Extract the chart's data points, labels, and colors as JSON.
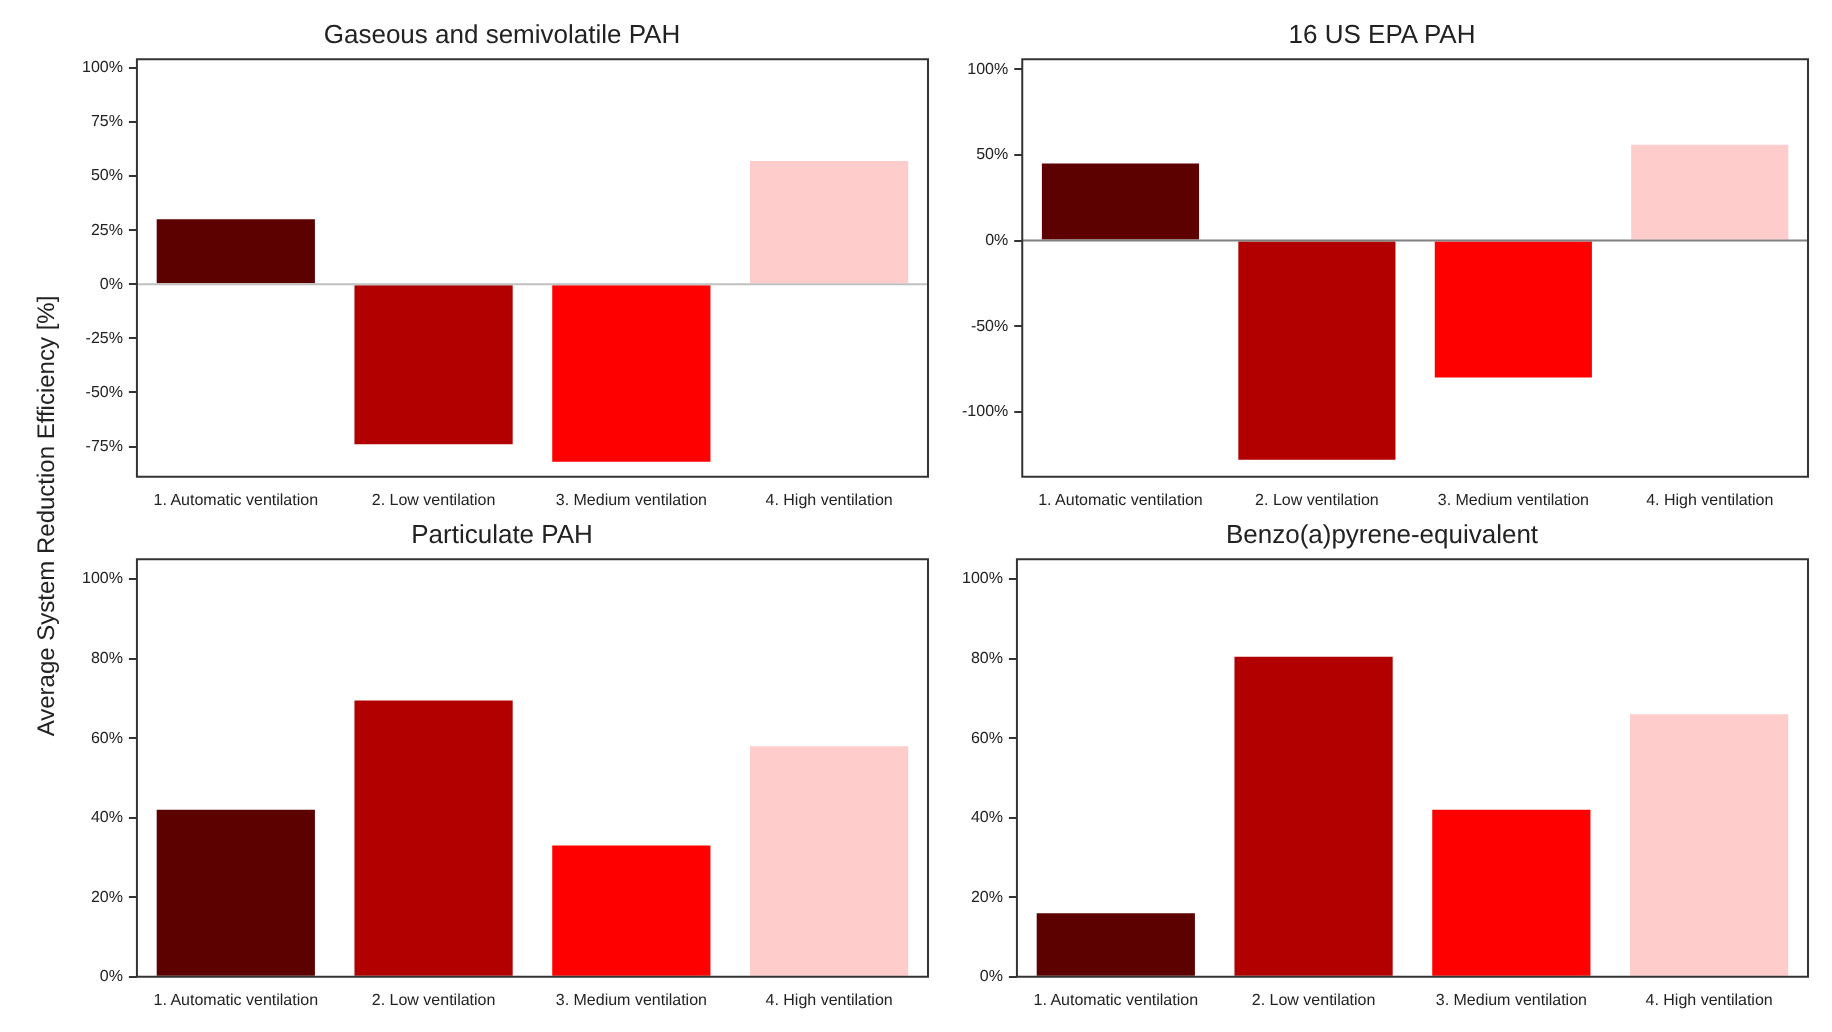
{
  "chart_data": [
    {
      "type": "bar",
      "title": "Gaseous and semivolatile PAH",
      "ylabel": "Average System Reduction Efficiency [%]",
      "categories": [
        "1. Automatic ventilation",
        "2. Low ventilation",
        "3. Medium ventilation",
        "4. High ventilation"
      ],
      "values": [
        30,
        -74,
        -82,
        57
      ],
      "colors": [
        "#5c0000",
        "#b20000",
        "#ff0000",
        "#ffcccc"
      ],
      "ylim": [
        -89,
        104
      ],
      "yticks": [
        {
          "value": -75,
          "label": "-75%"
        },
        {
          "value": -50,
          "label": "-50%"
        },
        {
          "value": -25,
          "label": "-25%"
        },
        {
          "value": 0,
          "label": "0%"
        },
        {
          "value": 25,
          "label": "25%"
        },
        {
          "value": 50,
          "label": "50%"
        },
        {
          "value": 75,
          "label": "75%"
        },
        {
          "value": 100,
          "label": "100%"
        }
      ],
      "ref_lines": [
        {
          "axis": "y",
          "value": 0,
          "color": "#c0c0c0"
        }
      ],
      "grid": false,
      "legend": false
    },
    {
      "type": "bar",
      "title": "16 US EPA PAH",
      "categories": [
        "1. Automatic ventilation",
        "2. Low ventilation",
        "3. Medium ventilation",
        "4. High ventilation"
      ],
      "values": [
        45,
        -128,
        -80,
        56
      ],
      "colors": [
        "#5c0000",
        "#b20000",
        "#ff0000",
        "#ffcccc"
      ],
      "ylim": [
        -138,
        106
      ],
      "yticks": [
        {
          "value": -100,
          "label": "-100%"
        },
        {
          "value": -50,
          "label": "-50%"
        },
        {
          "value": 0,
          "label": "0%"
        },
        {
          "value": 50,
          "label": "50%"
        },
        {
          "value": 100,
          "label": "100%"
        }
      ],
      "ref_lines": [
        {
          "axis": "y",
          "value": 0,
          "color": "#808080"
        }
      ],
      "grid": false,
      "legend": false
    },
    {
      "type": "bar",
      "title": "Particulate PAH",
      "categories": [
        "1. Automatic ventilation",
        "2. Low ventilation",
        "3. Medium ventilation",
        "4. High ventilation"
      ],
      "values": [
        42,
        69.5,
        33,
        58
      ],
      "colors": [
        "#5c0000",
        "#b20000",
        "#ff0000",
        "#ffcccc"
      ],
      "ylim": [
        0,
        105
      ],
      "yticks": [
        {
          "value": 0,
          "label": "0%"
        },
        {
          "value": 20,
          "label": "20%"
        },
        {
          "value": 40,
          "label": "40%"
        },
        {
          "value": 60,
          "label": "60%"
        },
        {
          "value": 80,
          "label": "80%"
        },
        {
          "value": 100,
          "label": "100%"
        }
      ],
      "grid": false,
      "legend": false
    },
    {
      "type": "bar",
      "title": "Benzo(a)pyrene-equivalent",
      "categories": [
        "1. Automatic ventilation",
        "2. Low ventilation",
        "3. Medium ventilation",
        "4. High ventilation"
      ],
      "values": [
        16,
        80.5,
        42,
        66
      ],
      "colors": [
        "#5c0000",
        "#b20000",
        "#ff0000",
        "#ffcccc"
      ],
      "ylim": [
        0,
        105
      ],
      "yticks": [
        {
          "value": 0,
          "label": "0%"
        },
        {
          "value": 20,
          "label": "20%"
        },
        {
          "value": 40,
          "label": "40%"
        },
        {
          "value": 60,
          "label": "60%"
        },
        {
          "value": 80,
          "label": "80%"
        },
        {
          "value": 100,
          "label": "100%"
        }
      ],
      "grid": false,
      "legend": false
    }
  ]
}
